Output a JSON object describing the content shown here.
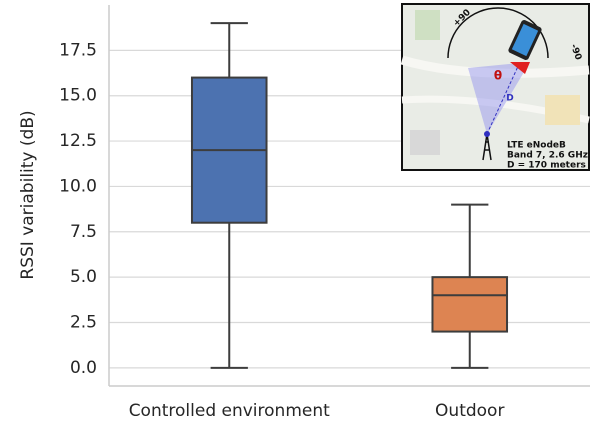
{
  "chart_data": {
    "type": "box",
    "ylabel": "RSSI variability (dB)",
    "categories": [
      "Controlled environment",
      "Outdoor"
    ],
    "boxes": [
      {
        "min": 0,
        "q1": 8,
        "median": 12,
        "q3": 16,
        "max": 19,
        "color": "#4c72b0"
      },
      {
        "min": 0,
        "q1": 2,
        "median": 4,
        "q3": 5,
        "max": 9,
        "color": "#dd8452"
      }
    ],
    "ylim": [
      -1,
      20
    ],
    "yticks": [
      {
        "value": 0,
        "label": "0.0"
      },
      2.5,
      {
        "value": 5,
        "label": "5.0"
      },
      7.5,
      {
        "value": 10,
        "label": "10.0"
      },
      12.5,
      {
        "value": 15,
        "label": "15.0"
      },
      17.5
    ],
    "grid": true,
    "annotations": [
      "+90",
      "-90",
      "θ",
      "D",
      "LTE eNodeB",
      "Band 7, 2.6 GHz",
      "D = 170 meters"
    ]
  }
}
